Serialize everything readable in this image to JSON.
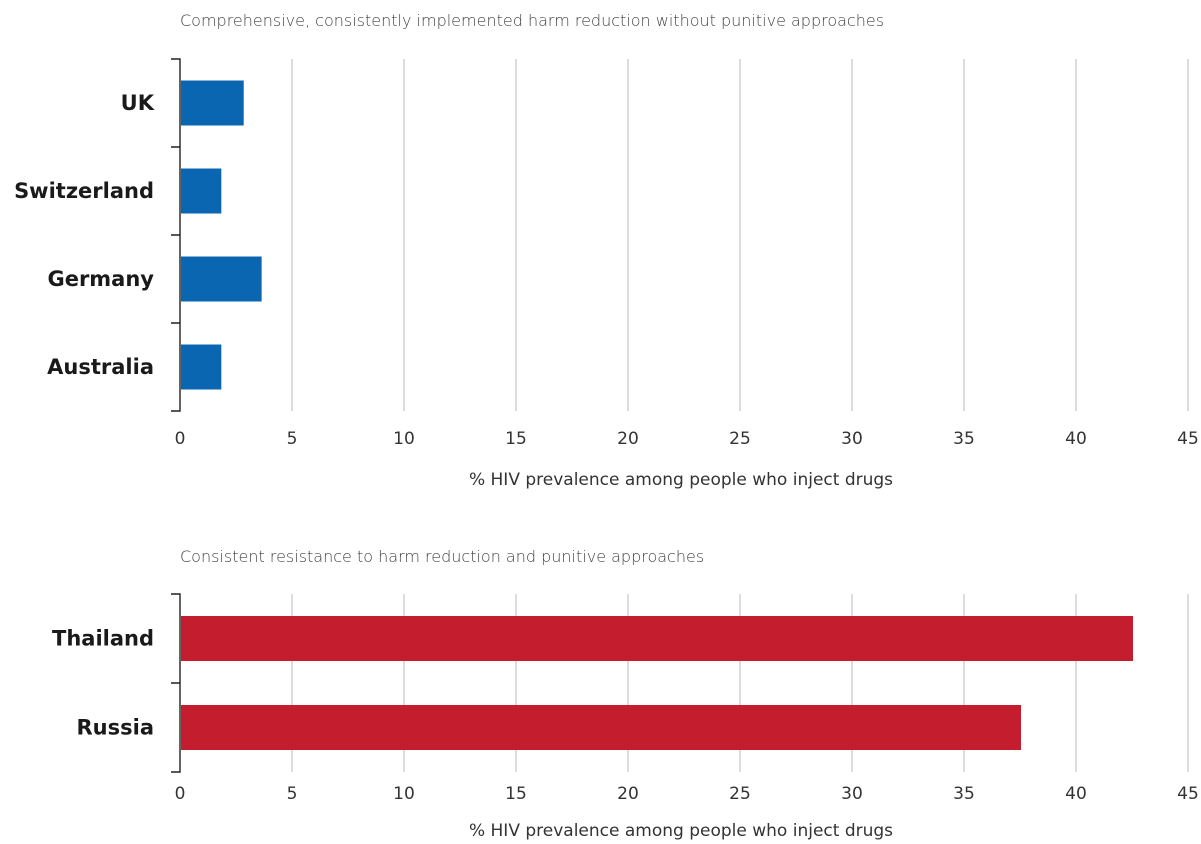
{
  "chart_data": [
    {
      "type": "bar",
      "orientation": "horizontal",
      "title": "Comprehensive, consistently implemented harm reduction without punitive approaches",
      "categories": [
        "UK",
        "Switzerland",
        "Germany",
        "Australia"
      ],
      "values": [
        2.8,
        1.8,
        3.6,
        1.8
      ],
      "color": "#0a66b1",
      "xlabel": "% HIV prevalence among people who inject drugs",
      "xlim": [
        0,
        45
      ],
      "xticks": [
        "0",
        "5",
        "10",
        "15",
        "20",
        "25",
        "30",
        "35",
        "40",
        "45"
      ],
      "grid": true
    },
    {
      "type": "bar",
      "orientation": "horizontal",
      "title": "Consistent resistance to harm reduction and punitive approaches",
      "categories": [
        "Thailand",
        "Russia"
      ],
      "values": [
        42.5,
        37.5
      ],
      "color": "#c41e2e",
      "xlabel": "% HIV prevalence among people who inject drugs",
      "xlim": [
        0,
        45
      ],
      "xticks": [
        "0",
        "5",
        "10",
        "15",
        "20",
        "25",
        "30",
        "35",
        "40",
        "45"
      ],
      "grid": true
    }
  ]
}
